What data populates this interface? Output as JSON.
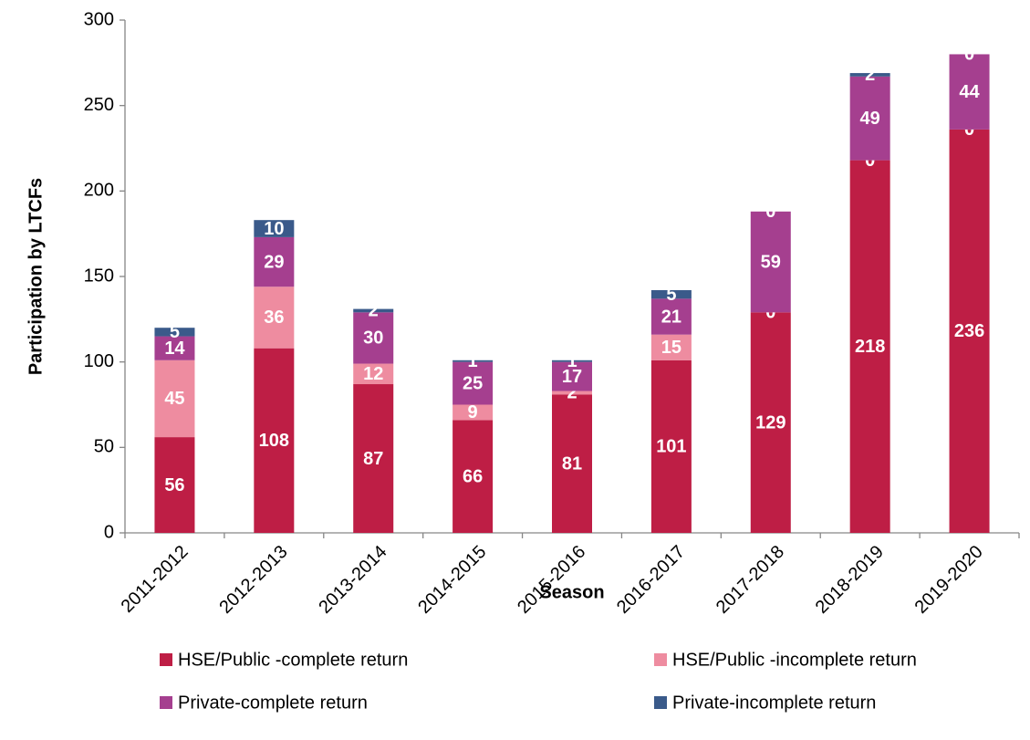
{
  "chart_data": {
    "type": "bar",
    "stacked": true,
    "x_label": "Season",
    "y_label": "Participation by LTCFs",
    "categories": [
      "2011-2012",
      "2012-2013",
      "2013-2014",
      "2014-2015",
      "2015-2016",
      "2016-2017",
      "2017-2018",
      "2018-2019",
      "2019-2020"
    ],
    "series": [
      {
        "name": "HSE/Public -complete return",
        "color": "#be1e45",
        "values": [
          56,
          108,
          87,
          66,
          81,
          101,
          129,
          218,
          236
        ]
      },
      {
        "name": "HSE/Public -incomplete return",
        "color": "#ee8ca0",
        "values": [
          45,
          36,
          12,
          9,
          2,
          15,
          0,
          0,
          0
        ]
      },
      {
        "name": "Private-complete return",
        "color": "#a53f8f",
        "values": [
          14,
          29,
          30,
          25,
          17,
          21,
          59,
          49,
          44
        ]
      },
      {
        "name": "Private-incomplete return",
        "color": "#3a5a8a",
        "values": [
          5,
          10,
          2,
          1,
          1,
          5,
          0,
          2,
          0
        ]
      }
    ],
    "ylim": [
      0,
      300
    ],
    "yticks": [
      0,
      50,
      100,
      150,
      200,
      250,
      300
    ],
    "grid": false,
    "data_labels": true
  }
}
